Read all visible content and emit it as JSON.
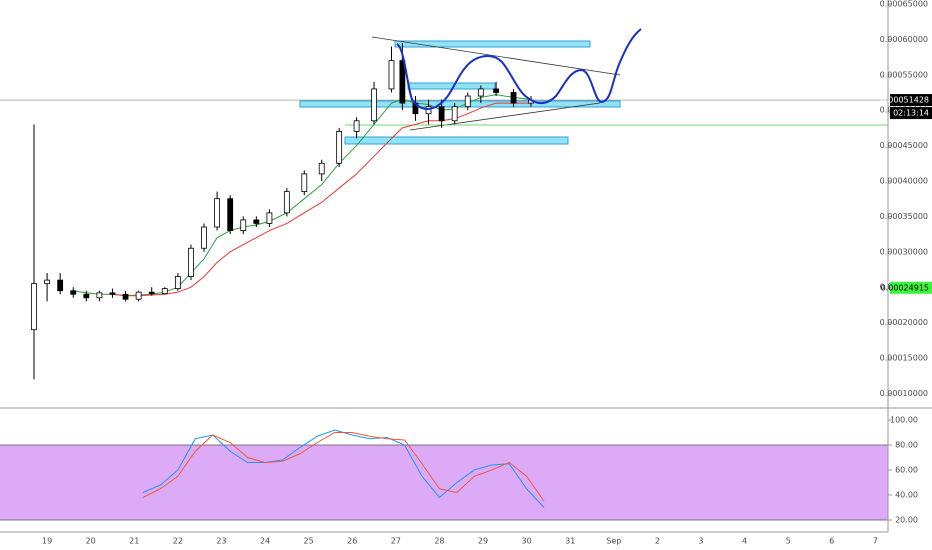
{
  "chart_data": [
    {
      "type": "candlestick",
      "x": [
        -0.3,
        0,
        0.3,
        0.6,
        0.9,
        1.2,
        1.5,
        1.8,
        2.1,
        2.4,
        2.7,
        3.0,
        3.3,
        3.6,
        3.9,
        4.2,
        4.5,
        4.8,
        5.1,
        5.5,
        5.9,
        6.3,
        6.7,
        7.1,
        7.5,
        7.9,
        8.15,
        8.45,
        8.75,
        9.05,
        9.35,
        9.65,
        9.95,
        10.3,
        10.7,
        11.1
      ],
      "open": [
        0.00019,
        0.000255,
        0.00026,
        0.000245,
        0.00024,
        0.000235,
        0.000242,
        0.00024,
        0.000233,
        0.000243,
        0.000241,
        0.000248,
        0.000265,
        0.000305,
        0.000335,
        0.000375,
        0.00033,
        0.000345,
        0.00034,
        0.000355,
        0.000385,
        0.00041,
        0.000425,
        0.00047,
        0.000485,
        0.00053,
        0.00057,
        0.00051,
        0.000495,
        0.000505,
        0.000485,
        0.000505,
        0.00052,
        0.00053,
        0.000525,
        0.00051
      ],
      "high": [
        0.00048,
        0.00027,
        0.00027,
        0.00025,
        0.000245,
        0.000245,
        0.000248,
        0.000245,
        0.000245,
        0.00025,
        0.00025,
        0.00027,
        0.00031,
        0.00034,
        0.000385,
        0.00038,
        0.00035,
        0.00035,
        0.00036,
        0.00039,
        0.000415,
        0.00043,
        0.000475,
        0.00049,
        0.00054,
        0.00059,
        0.000595,
        0.00052,
        0.000515,
        0.000515,
        0.00051,
        0.000525,
        0.000535,
        0.00054,
        0.00053,
        0.00052
      ],
      "low": [
        0.00012,
        0.00023,
        0.00024,
        0.000235,
        0.00023,
        0.00023,
        0.000235,
        0.00023,
        0.00023,
        0.000238,
        0.00024,
        0.000245,
        0.00026,
        0.0003,
        0.00033,
        0.000325,
        0.000325,
        0.000335,
        0.000335,
        0.00035,
        0.00038,
        0.0004,
        0.00042,
        0.00046,
        0.00048,
        0.000525,
        0.0005,
        0.000485,
        0.00048,
        0.000475,
        0.00048,
        0.0005,
        0.00051,
        0.00052,
        0.000505,
        0.000505
      ],
      "close": [
        0.000255,
        0.00026,
        0.000245,
        0.00024,
        0.000235,
        0.000242,
        0.00024,
        0.000233,
        0.000243,
        0.000241,
        0.000248,
        0.000265,
        0.000305,
        0.000335,
        0.000375,
        0.00033,
        0.000345,
        0.00034,
        0.000355,
        0.000385,
        0.00041,
        0.000425,
        0.00047,
        0.000485,
        0.00053,
        0.00057,
        0.00051,
        0.000495,
        0.000505,
        0.000485,
        0.000505,
        0.00052,
        0.00053,
        0.000525,
        0.00051,
        0.00051428
      ],
      "up_color": "#ffffff",
      "down_color": "#000000",
      "series": [
        {
          "color": "#2e9e3e",
          "values": [
            null,
            null,
            null,
            0.000245,
            0.000242,
            0.00024,
            0.00024,
            0.000238,
            0.000239,
            0.00024,
            0.000243,
            0.00025,
            0.00027,
            0.00029,
            0.00032,
            0.00033,
            0.000335,
            0.000338,
            0.000343,
            0.000355,
            0.000375,
            0.000395,
            0.000425,
            0.00045,
            0.00048,
            0.00051,
            0.000515,
            0.00051,
            0.000508,
            0.0005,
            0.000502,
            0.00051,
            0.000518,
            0.000522,
            0.000518,
            0.000515
          ]
        },
        {
          "color": "#e53935",
          "values": [
            null,
            null,
            null,
            null,
            null,
            null,
            0.00024,
            0.000238,
            0.000238,
            0.000239,
            0.00024,
            0.000243,
            0.00025,
            0.000265,
            0.000285,
            0.0003,
            0.00031,
            0.00032,
            0.00033,
            0.00034,
            0.000355,
            0.00037,
            0.00039,
            0.00041,
            0.000435,
            0.00046,
            0.000475,
            0.00048,
            0.000485,
            0.000485,
            0.000488,
            0.000495,
            0.000503,
            0.00051,
            0.00051,
            0.00051
          ]
        }
      ],
      "xlim": [
        -1.08,
        19.29
      ],
      "xticks": [
        {
          "value": 0,
          "label": "19"
        },
        {
          "value": 1,
          "label": "20"
        },
        {
          "value": 2,
          "label": "21"
        },
        {
          "value": 3,
          "label": "22"
        },
        {
          "value": 4,
          "label": "23"
        },
        {
          "value": 5,
          "label": "24"
        },
        {
          "value": 6,
          "label": "25"
        },
        {
          "value": 7,
          "label": "26"
        },
        {
          "value": 8,
          "label": "27"
        },
        {
          "value": 9,
          "label": "28"
        },
        {
          "value": 10,
          "label": "29"
        },
        {
          "value": 11,
          "label": "30"
        },
        {
          "value": 12,
          "label": "31"
        },
        {
          "value": 13,
          "label": "Sep"
        },
        {
          "value": 14,
          "label": "2"
        },
        {
          "value": 15,
          "label": "3"
        },
        {
          "value": 16,
          "label": "4"
        },
        {
          "value": 17,
          "label": "5"
        },
        {
          "value": 18,
          "label": "6"
        },
        {
          "value": 19,
          "label": "7"
        }
      ],
      "ylim": [
        7.94e-05,
        0.0006556
      ],
      "yticks": [
        {
          "value": 0.0001,
          "label": "0.00010000"
        },
        {
          "value": 0.00015,
          "label": "0.00015000"
        },
        {
          "value": 0.0002,
          "label": "0.00020000"
        },
        {
          "value": 0.00025,
          "label": "0.00025000"
        },
        {
          "value": 0.0003,
          "label": "0.00030000"
        },
        {
          "value": 0.00035,
          "label": "0.00035000"
        },
        {
          "value": 0.0004,
          "label": "0.00040000"
        },
        {
          "value": 0.00045,
          "label": "0.00045000"
        },
        {
          "value": 0.0005,
          "label": "0.00050000"
        },
        {
          "value": 0.00055,
          "label": "0.00055000"
        },
        {
          "value": 0.0006,
          "label": "0.00060000"
        },
        {
          "value": 0.00065,
          "label": "0.00065000"
        }
      ],
      "last_price": 0.00051428,
      "countdown": "02:13:14",
      "alert_price": 0.00024915
    },
    {
      "type": "line",
      "x": [
        2.2,
        2.6,
        3.0,
        3.4,
        3.8,
        4.2,
        4.6,
        5.0,
        5.4,
        5.8,
        6.2,
        6.6,
        7.0,
        7.4,
        7.8,
        8.2,
        8.6,
        9.0,
        9.4,
        9.8,
        10.2,
        10.6,
        11.0,
        11.4
      ],
      "series": [
        {
          "color": "#2196f3",
          "values": [
            42,
            48,
            60,
            85,
            88,
            75,
            66,
            66,
            68,
            78,
            87,
            92,
            88,
            85,
            86,
            80,
            55,
            38,
            50,
            60,
            64,
            65,
            45,
            30
          ]
        },
        {
          "color": "#ef5a3c",
          "values": [
            38,
            45,
            55,
            75,
            88,
            82,
            70,
            66,
            67,
            73,
            82,
            90,
            90,
            87,
            85,
            84,
            65,
            45,
            42,
            55,
            60,
            66,
            55,
            35
          ]
        }
      ],
      "xlim": [
        -1.08,
        19.29
      ],
      "ylim": [
        10.4,
        106.4
      ],
      "yticks": [
        {
          "value": 100,
          "label": "100.00"
        },
        {
          "value": 80,
          "label": "80.00"
        },
        {
          "value": 60,
          "label": "60.00"
        },
        {
          "value": 40,
          "label": "40.00"
        },
        {
          "value": 20,
          "label": "20.00"
        }
      ],
      "band": [
        20,
        80
      ],
      "band_color": "#dcaaf7"
    }
  ]
}
